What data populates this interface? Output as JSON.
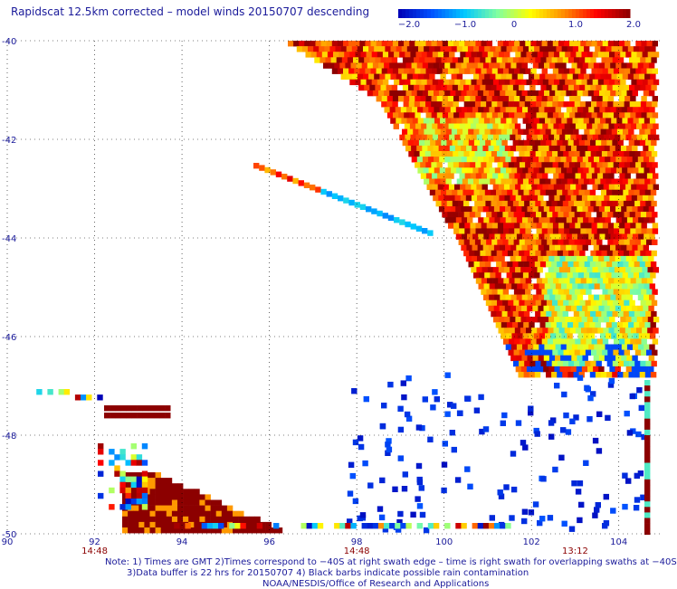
{
  "title": "Rapidscat 12.5km corrected – model winds 20150707 descending",
  "colorbar": {
    "ticks": [
      "−2.0",
      "−1.0",
      "0",
      "1.0",
      "2.0"
    ],
    "range": [
      -2.0,
      2.0
    ],
    "colors": [
      "#0000b4",
      "#0050ff",
      "#00c8ff",
      "#80ffa0",
      "#ffff00",
      "#ff8c00",
      "#ff0000",
      "#8c0000"
    ]
  },
  "chart_data": {
    "type": "heatmap",
    "title": "Rapidscat 12.5km corrected – model winds 20150707 descending",
    "x_range": [
      90,
      105
    ],
    "y_range": [
      -50,
      -40
    ],
    "x_ticks": [
      "90",
      "92",
      "94",
      "96",
      "98",
      "100",
      "102",
      "104"
    ],
    "y_ticks": [
      "-40",
      "-42",
      "-44",
      "-46",
      "-48",
      "-50"
    ],
    "time_labels": [
      {
        "lon": 92,
        "text": "14:48"
      },
      {
        "lon": 98,
        "text": "14:48"
      },
      {
        "lon": 103,
        "text": "13:12"
      }
    ],
    "grid": "dotted",
    "value_range": [
      -2.0,
      2.0
    ]
  },
  "notes": [
    "Note: 1) Times are GMT 2)Times correspond to −40S at right swath edge – time is right swath for overlapping swaths at −40S",
    "3)Data buffer is 22 hrs for 20150707 4) Black barbs indicate possible rain contamination",
    "NOAA/NESDIS/Office of Research and Applications"
  ],
  "colors": {
    "text": "#1a1a9a",
    "time": "#8b0000",
    "grid": "#000000"
  }
}
